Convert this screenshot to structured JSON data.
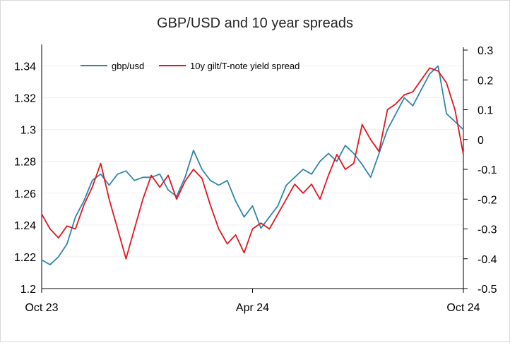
{
  "chart_data": {
    "type": "line",
    "title": "GBP/USD and 10 year spreads",
    "xlabel": "",
    "ylabel": "",
    "y2label": "",
    "x_ticks": [
      "Oct 23",
      "Apr 24",
      "Oct 24"
    ],
    "x_start": "Oct 23",
    "x_end": "Oct 24",
    "ylim": [
      1.2,
      1.35
    ],
    "y_ticks": [
      "1.2",
      "1.22",
      "1.24",
      "1.26",
      "1.28",
      "1.3",
      "1.32",
      "1.34"
    ],
    "y2lim": [
      -0.5,
      0.3
    ],
    "y2_ticks": [
      "-0.5",
      "-0.4",
      "-0.3",
      "-0.2",
      "-0.1",
      "0",
      "0.1",
      "0.2",
      "0.3"
    ],
    "grid": true,
    "legend_position": "top-left",
    "series": [
      {
        "name": "gbp/usd",
        "axis": "left",
        "color": "#2E86AB",
        "x": [
          0,
          0.02,
          0.04,
          0.06,
          0.08,
          0.1,
          0.12,
          0.14,
          0.16,
          0.18,
          0.2,
          0.22,
          0.24,
          0.26,
          0.28,
          0.3,
          0.32,
          0.34,
          0.36,
          0.38,
          0.4,
          0.42,
          0.44,
          0.46,
          0.48,
          0.5,
          0.52,
          0.54,
          0.56,
          0.58,
          0.6,
          0.62,
          0.64,
          0.66,
          0.68,
          0.7,
          0.72,
          0.74,
          0.76,
          0.78,
          0.8,
          0.82,
          0.84,
          0.86,
          0.88,
          0.9,
          0.92,
          0.94,
          0.96,
          0.98,
          1.0
        ],
        "values": [
          1.218,
          1.215,
          1.22,
          1.228,
          1.245,
          1.255,
          1.268,
          1.272,
          1.265,
          1.272,
          1.274,
          1.268,
          1.27,
          1.27,
          1.272,
          1.262,
          1.258,
          1.27,
          1.287,
          1.275,
          1.268,
          1.265,
          1.268,
          1.255,
          1.245,
          1.252,
          1.238,
          1.245,
          1.252,
          1.265,
          1.27,
          1.275,
          1.272,
          1.28,
          1.285,
          1.28,
          1.29,
          1.285,
          1.278,
          1.27,
          1.285,
          1.3,
          1.31,
          1.32,
          1.315,
          1.325,
          1.335,
          1.34,
          1.31,
          1.305,
          1.3
        ]
      },
      {
        "name": "10y gilt/T-note yield spread",
        "axis": "right",
        "color": "#E0161F",
        "x": [
          0,
          0.02,
          0.04,
          0.06,
          0.08,
          0.1,
          0.12,
          0.14,
          0.16,
          0.18,
          0.2,
          0.22,
          0.24,
          0.26,
          0.28,
          0.3,
          0.32,
          0.34,
          0.36,
          0.38,
          0.4,
          0.42,
          0.44,
          0.46,
          0.48,
          0.5,
          0.52,
          0.54,
          0.56,
          0.58,
          0.6,
          0.62,
          0.64,
          0.66,
          0.68,
          0.7,
          0.72,
          0.74,
          0.76,
          0.78,
          0.8,
          0.82,
          0.84,
          0.86,
          0.88,
          0.9,
          0.92,
          0.94,
          0.96,
          0.98,
          1.0
        ],
        "values": [
          -0.25,
          -0.3,
          -0.33,
          -0.29,
          -0.3,
          -0.22,
          -0.16,
          -0.08,
          -0.2,
          -0.3,
          -0.4,
          -0.3,
          -0.2,
          -0.12,
          -0.16,
          -0.12,
          -0.2,
          -0.14,
          -0.1,
          -0.13,
          -0.22,
          -0.3,
          -0.35,
          -0.32,
          -0.38,
          -0.3,
          -0.28,
          -0.3,
          -0.25,
          -0.2,
          -0.15,
          -0.18,
          -0.15,
          -0.2,
          -0.12,
          -0.05,
          -0.1,
          -0.08,
          0.05,
          0.0,
          -0.04,
          0.1,
          0.12,
          0.15,
          0.16,
          0.2,
          0.24,
          0.23,
          0.19,
          0.1,
          -0.05
        ]
      }
    ]
  }
}
